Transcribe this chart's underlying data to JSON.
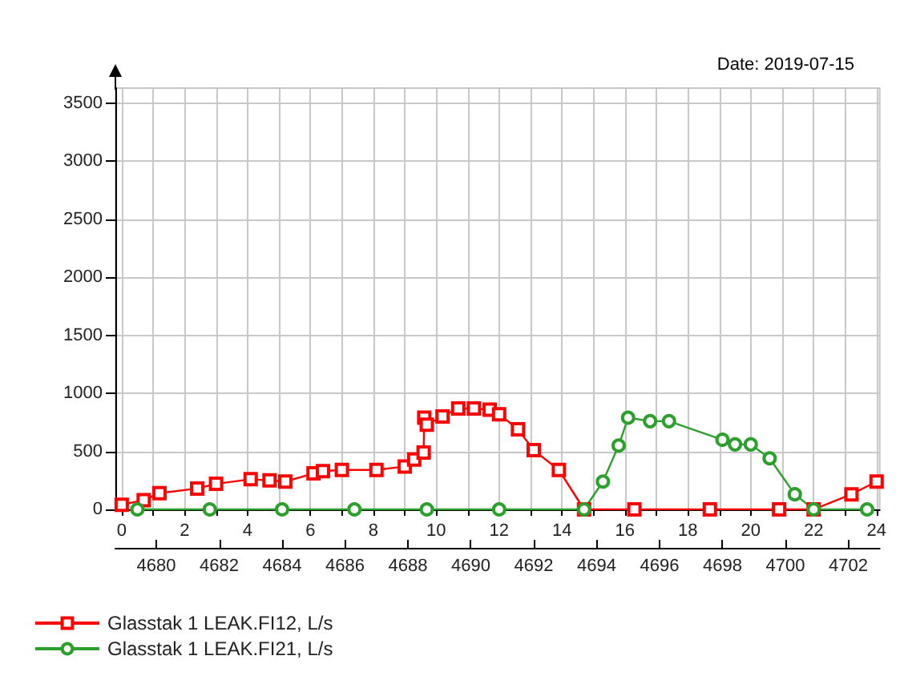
{
  "chart_data": {
    "type": "line",
    "annotations": [
      "Date: 2019-07-15"
    ],
    "series": [
      {
        "name": "Glasstak 1 LEAK.FI12, L/s",
        "color": "#ff0000",
        "marker": "square",
        "x": [
          0,
          0.7,
          1.2,
          2.4,
          3.0,
          4.1,
          4.7,
          5.2,
          6.1,
          6.4,
          7.0,
          8.1,
          9.0,
          9.3,
          9.6,
          9.62,
          9.7,
          10.2,
          10.7,
          11.2,
          11.7,
          12.0,
          12.6,
          13.1,
          13.9,
          14.7,
          16.3,
          18.7,
          20.9,
          22.0,
          23.2,
          24.0
        ],
        "values": [
          40,
          80,
          140,
          180,
          220,
          260,
          250,
          240,
          310,
          330,
          340,
          340,
          370,
          430,
          490,
          790,
          730,
          800,
          870,
          870,
          860,
          820,
          690,
          510,
          340,
          0,
          0,
          0,
          0,
          0,
          130,
          240
        ]
      },
      {
        "name": "Glasstak 1 LEAK.FI21, L/s",
        "color": "#2ca02c",
        "marker": "circle",
        "x": [
          0.5,
          2.8,
          5.1,
          7.4,
          9.7,
          12.0,
          14.7,
          15.3,
          15.8,
          16.1,
          16.8,
          17.4,
          19.1,
          19.5,
          20.0,
          20.6,
          21.4,
          22.0,
          23.7
        ],
        "values": [
          0,
          0,
          0,
          0,
          0,
          0,
          0,
          240,
          550,
          790,
          760,
          760,
          600,
          560,
          560,
          440,
          130,
          0,
          0
        ]
      }
    ],
    "xlim": [
      -0.2,
      24.1
    ],
    "xticks": [
      0,
      {
        "value": 1,
        "label": null
      },
      2,
      {
        "value": 3,
        "label": null
      },
      4,
      {
        "value": 5,
        "label": null
      },
      6,
      {
        "value": 7,
        "label": null
      },
      8,
      {
        "value": 9,
        "label": null
      },
      10,
      {
        "value": 11,
        "label": null
      },
      12,
      {
        "value": 13,
        "label": null
      },
      14,
      {
        "value": 15,
        "label": null
      },
      16,
      {
        "value": 17,
        "label": null
      },
      18,
      {
        "value": 19,
        "label": null
      },
      20,
      {
        "value": 21,
        "label": null
      },
      22,
      {
        "value": 23,
        "label": null
      },
      24
    ],
    "x2lim": [
      4678.7,
      4703.0
    ],
    "x2ticks": [
      4680,
      4682,
      4684,
      4686,
      4688,
      4690,
      4692,
      4694,
      4696,
      4698,
      4700,
      4702
    ],
    "ylim": [
      0,
      3630
    ],
    "yticks": [
      0,
      500,
      1000,
      1500,
      2000,
      2500,
      3000,
      3500
    ],
    "grid": true,
    "legend": "bottom left",
    "line_style": "solid"
  }
}
